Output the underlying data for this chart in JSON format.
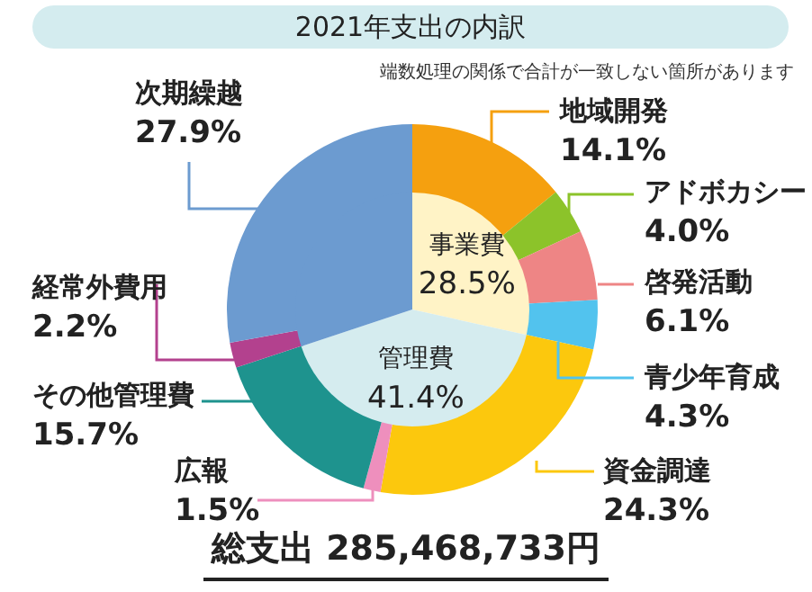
{
  "chart_data": [
    {
      "type": "donut",
      "title": "2021年支出の内訳",
      "categories": [
        "地域開発",
        "アドボカシー",
        "啓発活動",
        "青少年育成",
        "資金調達",
        "広報",
        "その他管理費",
        "経常外費用",
        "次期繰越"
      ],
      "values": [
        14.1,
        4.0,
        6.1,
        4.3,
        24.3,
        1.5,
        15.7,
        2.2,
        27.9
      ],
      "value_labels": [
        "14.1%",
        "4.0%",
        "6.1%",
        "4.3%",
        "24.3%",
        "1.5%",
        "15.7%",
        "2.2%",
        "27.9%"
      ],
      "colors": [
        "#f5a00f",
        "#8cc32a",
        "#ee8585",
        "#52c3ee",
        "#fcc80d",
        "#ee8fbd",
        "#1e938e",
        "#b3418e",
        "#6c9bd0"
      ],
      "annotations": [
        "端数処理の関係で合計が一致しない箇所があります",
        "総支出 285,468,733円"
      ]
    },
    {
      "type": "pie",
      "categories": [
        "事業費",
        "管理費",
        null
      ],
      "values": [
        28.5,
        41.4,
        30.1
      ],
      "value_labels": [
        "28.5%",
        "41.4%",
        null
      ],
      "colors": [
        "#fff3c6",
        "#d5ecef",
        "#6c9bd0"
      ]
    }
  ]
}
